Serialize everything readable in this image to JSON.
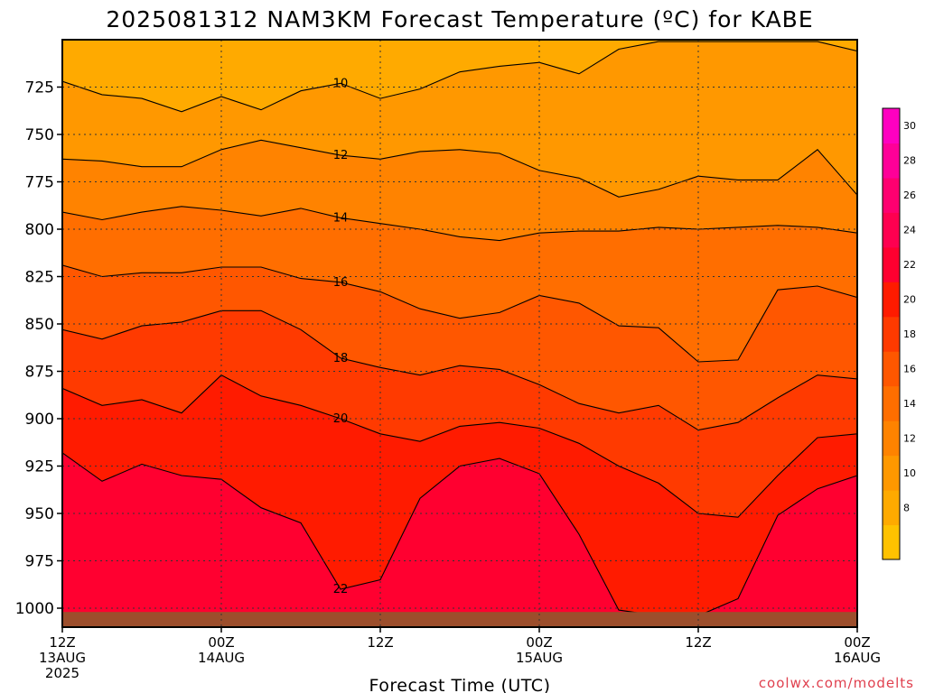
{
  "chart_data": {
    "type": "contour",
    "title": "2025081312 NAM3KM Forecast Temperature (ºC) for KABE",
    "xlabel": "Forecast Time (UTC)",
    "ylabel": "",
    "credit": "coolwx.com/modelts",
    "x_ticks": [
      {
        "hour": 0,
        "lines": [
          "12Z",
          "13AUG",
          "2025"
        ]
      },
      {
        "hour": 12,
        "lines": [
          "00Z",
          "14AUG"
        ]
      },
      {
        "hour": 24,
        "lines": [
          "12Z"
        ]
      },
      {
        "hour": 36,
        "lines": [
          "00Z",
          "15AUG"
        ]
      },
      {
        "hour": 48,
        "lines": [
          "12Z"
        ]
      },
      {
        "hour": 60,
        "lines": [
          "00Z",
          "16AUG"
        ]
      }
    ],
    "xlim_hours": [
      0,
      60
    ],
    "y_ticks": [
      725,
      750,
      775,
      800,
      825,
      850,
      875,
      900,
      925,
      950,
      975,
      1000
    ],
    "ylim_hpa": [
      700,
      1010
    ],
    "y_inverted": true,
    "grid": true,
    "colorbar": {
      "levels": [
        6,
        8,
        10,
        12,
        14,
        16,
        18,
        20,
        22,
        24,
        26,
        28,
        30,
        32
      ],
      "labels": [
        8,
        10,
        12,
        14,
        16,
        18,
        20,
        22,
        24,
        26,
        28,
        30
      ],
      "colors": [
        "#ffc200",
        "#ffaa00",
        "#ff9800",
        "#ff8300",
        "#ff6e00",
        "#ff5700",
        "#ff3a00",
        "#ff1b00",
        "#ff0030",
        "#ff0050",
        "#ff0070",
        "#ff0098",
        "#ff00c0"
      ]
    },
    "series": [
      {
        "level": 10,
        "hours": [
          0,
          3,
          6,
          9,
          12,
          15,
          18,
          21,
          24,
          27,
          30,
          33,
          36,
          39,
          42,
          45,
          48,
          51,
          54,
          57,
          60
        ],
        "pressure_hpa": [
          722,
          729,
          731,
          738,
          730,
          737,
          727,
          723,
          731,
          726,
          717,
          714,
          712,
          718,
          705,
          701,
          701,
          701,
          701,
          701,
          706
        ]
      },
      {
        "level": 12,
        "hours": [
          0,
          3,
          6,
          9,
          12,
          15,
          18,
          21,
          24,
          27,
          30,
          33,
          36,
          39,
          42,
          45,
          48,
          51,
          54,
          57,
          60
        ],
        "pressure_hpa": [
          763,
          764,
          767,
          767,
          758,
          753,
          757,
          761,
          763,
          759,
          758,
          760,
          769,
          773,
          783,
          779,
          772,
          774,
          774,
          758,
          782
        ]
      },
      {
        "level": 14,
        "hours": [
          0,
          3,
          6,
          9,
          12,
          15,
          18,
          21,
          24,
          27,
          30,
          33,
          36,
          39,
          42,
          45,
          48,
          51,
          54,
          57,
          60
        ],
        "pressure_hpa": [
          791,
          795,
          791,
          788,
          790,
          793,
          789,
          794,
          797,
          800,
          804,
          806,
          802,
          801,
          801,
          799,
          800,
          799,
          798,
          799,
          802
        ]
      },
      {
        "level": 16,
        "hours": [
          0,
          3,
          6,
          9,
          12,
          15,
          18,
          21,
          24,
          27,
          30,
          33,
          36,
          39,
          42,
          45,
          48,
          51,
          54,
          57,
          60
        ],
        "pressure_hpa": [
          819,
          825,
          823,
          823,
          820,
          820,
          826,
          828,
          833,
          842,
          847,
          844,
          835,
          839,
          851,
          852,
          870,
          869,
          832,
          830,
          836
        ]
      },
      {
        "level": 18,
        "hours": [
          0,
          3,
          6,
          9,
          12,
          15,
          18,
          21,
          24,
          27,
          30,
          33,
          36,
          39,
          42,
          45,
          48,
          51,
          54,
          57,
          60
        ],
        "pressure_hpa": [
          853,
          858,
          851,
          849,
          843,
          843,
          853,
          868,
          873,
          877,
          872,
          874,
          882,
          892,
          897,
          893,
          906,
          902,
          889,
          877,
          879
        ]
      },
      {
        "level": 20,
        "hours": [
          0,
          3,
          6,
          9,
          12,
          15,
          18,
          21,
          24,
          27,
          30,
          33,
          36,
          39,
          42,
          45,
          48,
          51,
          54,
          57,
          60
        ],
        "pressure_hpa": [
          884,
          893,
          890,
          897,
          877,
          888,
          893,
          900,
          908,
          912,
          904,
          902,
          905,
          913,
          925,
          934,
          950,
          952,
          930,
          910,
          908
        ]
      },
      {
        "level": 22,
        "hours": [
          0,
          3,
          6,
          9,
          12,
          15,
          18,
          21,
          24,
          27,
          30,
          33,
          36,
          39,
          42,
          45,
          48,
          51,
          54,
          57,
          60
        ],
        "pressure_hpa": [
          918,
          933,
          924,
          930,
          932,
          947,
          955,
          990,
          985,
          942,
          925,
          921,
          929,
          961,
          1001,
          1004,
          1004,
          995,
          951,
          937,
          930
        ]
      }
    ]
  }
}
